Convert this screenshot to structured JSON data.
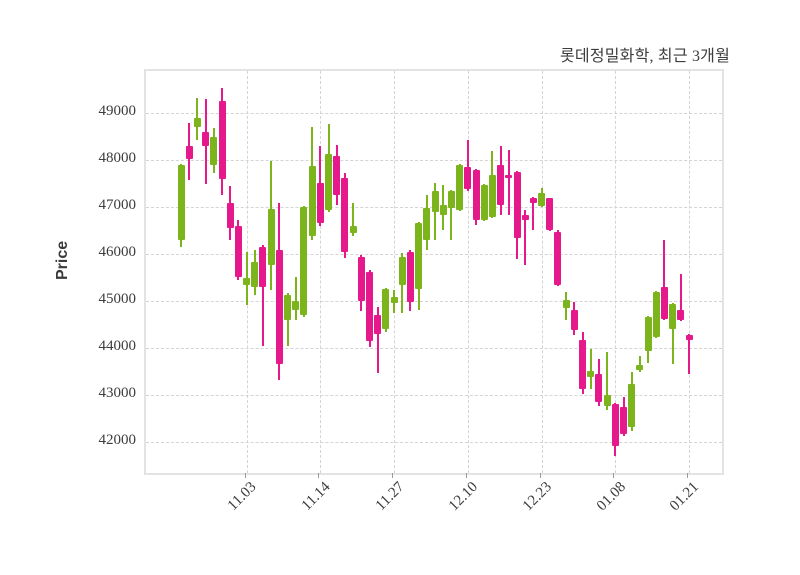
{
  "title": "롯데정밀화학, 최근 3개월",
  "y_axis": {
    "label": "Price"
  },
  "colors": {
    "up": "#7cb51b",
    "down": "#e5188c",
    "grid": "#d4d4d4",
    "plot_border": "#e3e3e3",
    "text": "#3c3c3c",
    "background": "#ffffff"
  },
  "chart_data": {
    "type": "candlestick",
    "title": "롯데정밀화학, 최근 3개월",
    "ylabel": "Price",
    "ylim": [
      41350,
      49900
    ],
    "grid": "dashed",
    "y_ticks": [
      42000,
      43000,
      44000,
      45000,
      46000,
      47000,
      48000,
      49000
    ],
    "x_tick_labels": [
      "11.03",
      "11.14",
      "11.27",
      "12.10",
      "12.23",
      "01.08",
      "01.21"
    ],
    "x_tick_indices": [
      8,
      17,
      26,
      35,
      44,
      53,
      62
    ],
    "candle_columns": [
      "open",
      "high",
      "low",
      "close"
    ],
    "candles": [
      [
        46300,
        47920,
        46160,
        47900
      ],
      [
        48300,
        48800,
        47590,
        48030
      ],
      [
        48700,
        49330,
        48440,
        48900
      ],
      [
        48600,
        49310,
        47490,
        48300
      ],
      [
        47900,
        48690,
        47720,
        48500
      ],
      [
        49260,
        49550,
        47260,
        47600
      ],
      [
        47100,
        47450,
        46300,
        46550
      ],
      [
        46600,
        46740,
        45450,
        45520
      ],
      [
        45350,
        46050,
        44920,
        45490
      ],
      [
        45300,
        46090,
        45130,
        45840
      ],
      [
        46160,
        46200,
        44060,
        45310
      ],
      [
        45770,
        47980,
        45240,
        46960
      ],
      [
        46100,
        47090,
        43320,
        43670
      ],
      [
        44610,
        45170,
        44060,
        45130
      ],
      [
        44810,
        45520,
        44600,
        45010
      ],
      [
        44700,
        47030,
        44670,
        47000
      ],
      [
        46380,
        48720,
        46300,
        47870
      ],
      [
        47510,
        48300,
        46600,
        46660
      ],
      [
        46940,
        48780,
        46900,
        48140
      ],
      [
        48100,
        48330,
        47050,
        47260
      ],
      [
        47620,
        47730,
        45930,
        46040
      ],
      [
        46450,
        47090,
        46380,
        46600
      ],
      [
        45950,
        45990,
        44800,
        45000
      ],
      [
        45630,
        45660,
        44030,
        44150
      ],
      [
        44720,
        44880,
        43480,
        44310
      ],
      [
        44420,
        45290,
        44350,
        45270
      ],
      [
        44960,
        45240,
        44750,
        45090
      ],
      [
        45350,
        46030,
        44750,
        45950
      ],
      [
        46050,
        46100,
        44800,
        44980
      ],
      [
        45270,
        46700,
        44810,
        46660
      ],
      [
        46310,
        47260,
        46090,
        46980
      ],
      [
        46910,
        47510,
        46310,
        47340
      ],
      [
        46840,
        47480,
        46520,
        47050
      ],
      [
        46980,
        47370,
        46310,
        47340
      ],
      [
        46940,
        47920,
        46930,
        47900
      ],
      [
        47860,
        48440,
        47340,
        47390
      ],
      [
        47800,
        47820,
        46620,
        46730
      ],
      [
        46730,
        47500,
        46710,
        47480
      ],
      [
        46800,
        48190,
        46780,
        47690
      ],
      [
        47910,
        48300,
        46840,
        47050
      ],
      [
        47690,
        48230,
        46840,
        47620
      ],
      [
        47760,
        47780,
        45910,
        46340
      ],
      [
        46840,
        46940,
        45770,
        46730
      ],
      [
        47210,
        47230,
        46520,
        47100
      ],
      [
        47020,
        47410,
        47000,
        47300
      ],
      [
        47190,
        47210,
        46500,
        46520
      ],
      [
        46480,
        46510,
        45320,
        45340
      ],
      [
        44870,
        45200,
        44600,
        45040
      ],
      [
        44810,
        44990,
        44280,
        44380
      ],
      [
        44170,
        44350,
        43030,
        43140
      ],
      [
        43390,
        43990,
        43140,
        43530
      ],
      [
        43460,
        43780,
        42780,
        42850
      ],
      [
        42780,
        43920,
        42680,
        43000
      ],
      [
        42820,
        42840,
        41720,
        41930
      ],
      [
        42750,
        42960,
        42140,
        42180
      ],
      [
        42320,
        43490,
        42250,
        43250
      ],
      [
        43530,
        43850,
        43490,
        43640
      ],
      [
        43950,
        44700,
        43700,
        44670
      ],
      [
        44240,
        45220,
        44220,
        45200
      ],
      [
        45310,
        46300,
        44610,
        44630
      ],
      [
        44420,
        44970,
        43670,
        44950
      ],
      [
        44810,
        45590,
        44580,
        44600
      ],
      [
        44290,
        44300,
        43460,
        44180
      ]
    ]
  }
}
